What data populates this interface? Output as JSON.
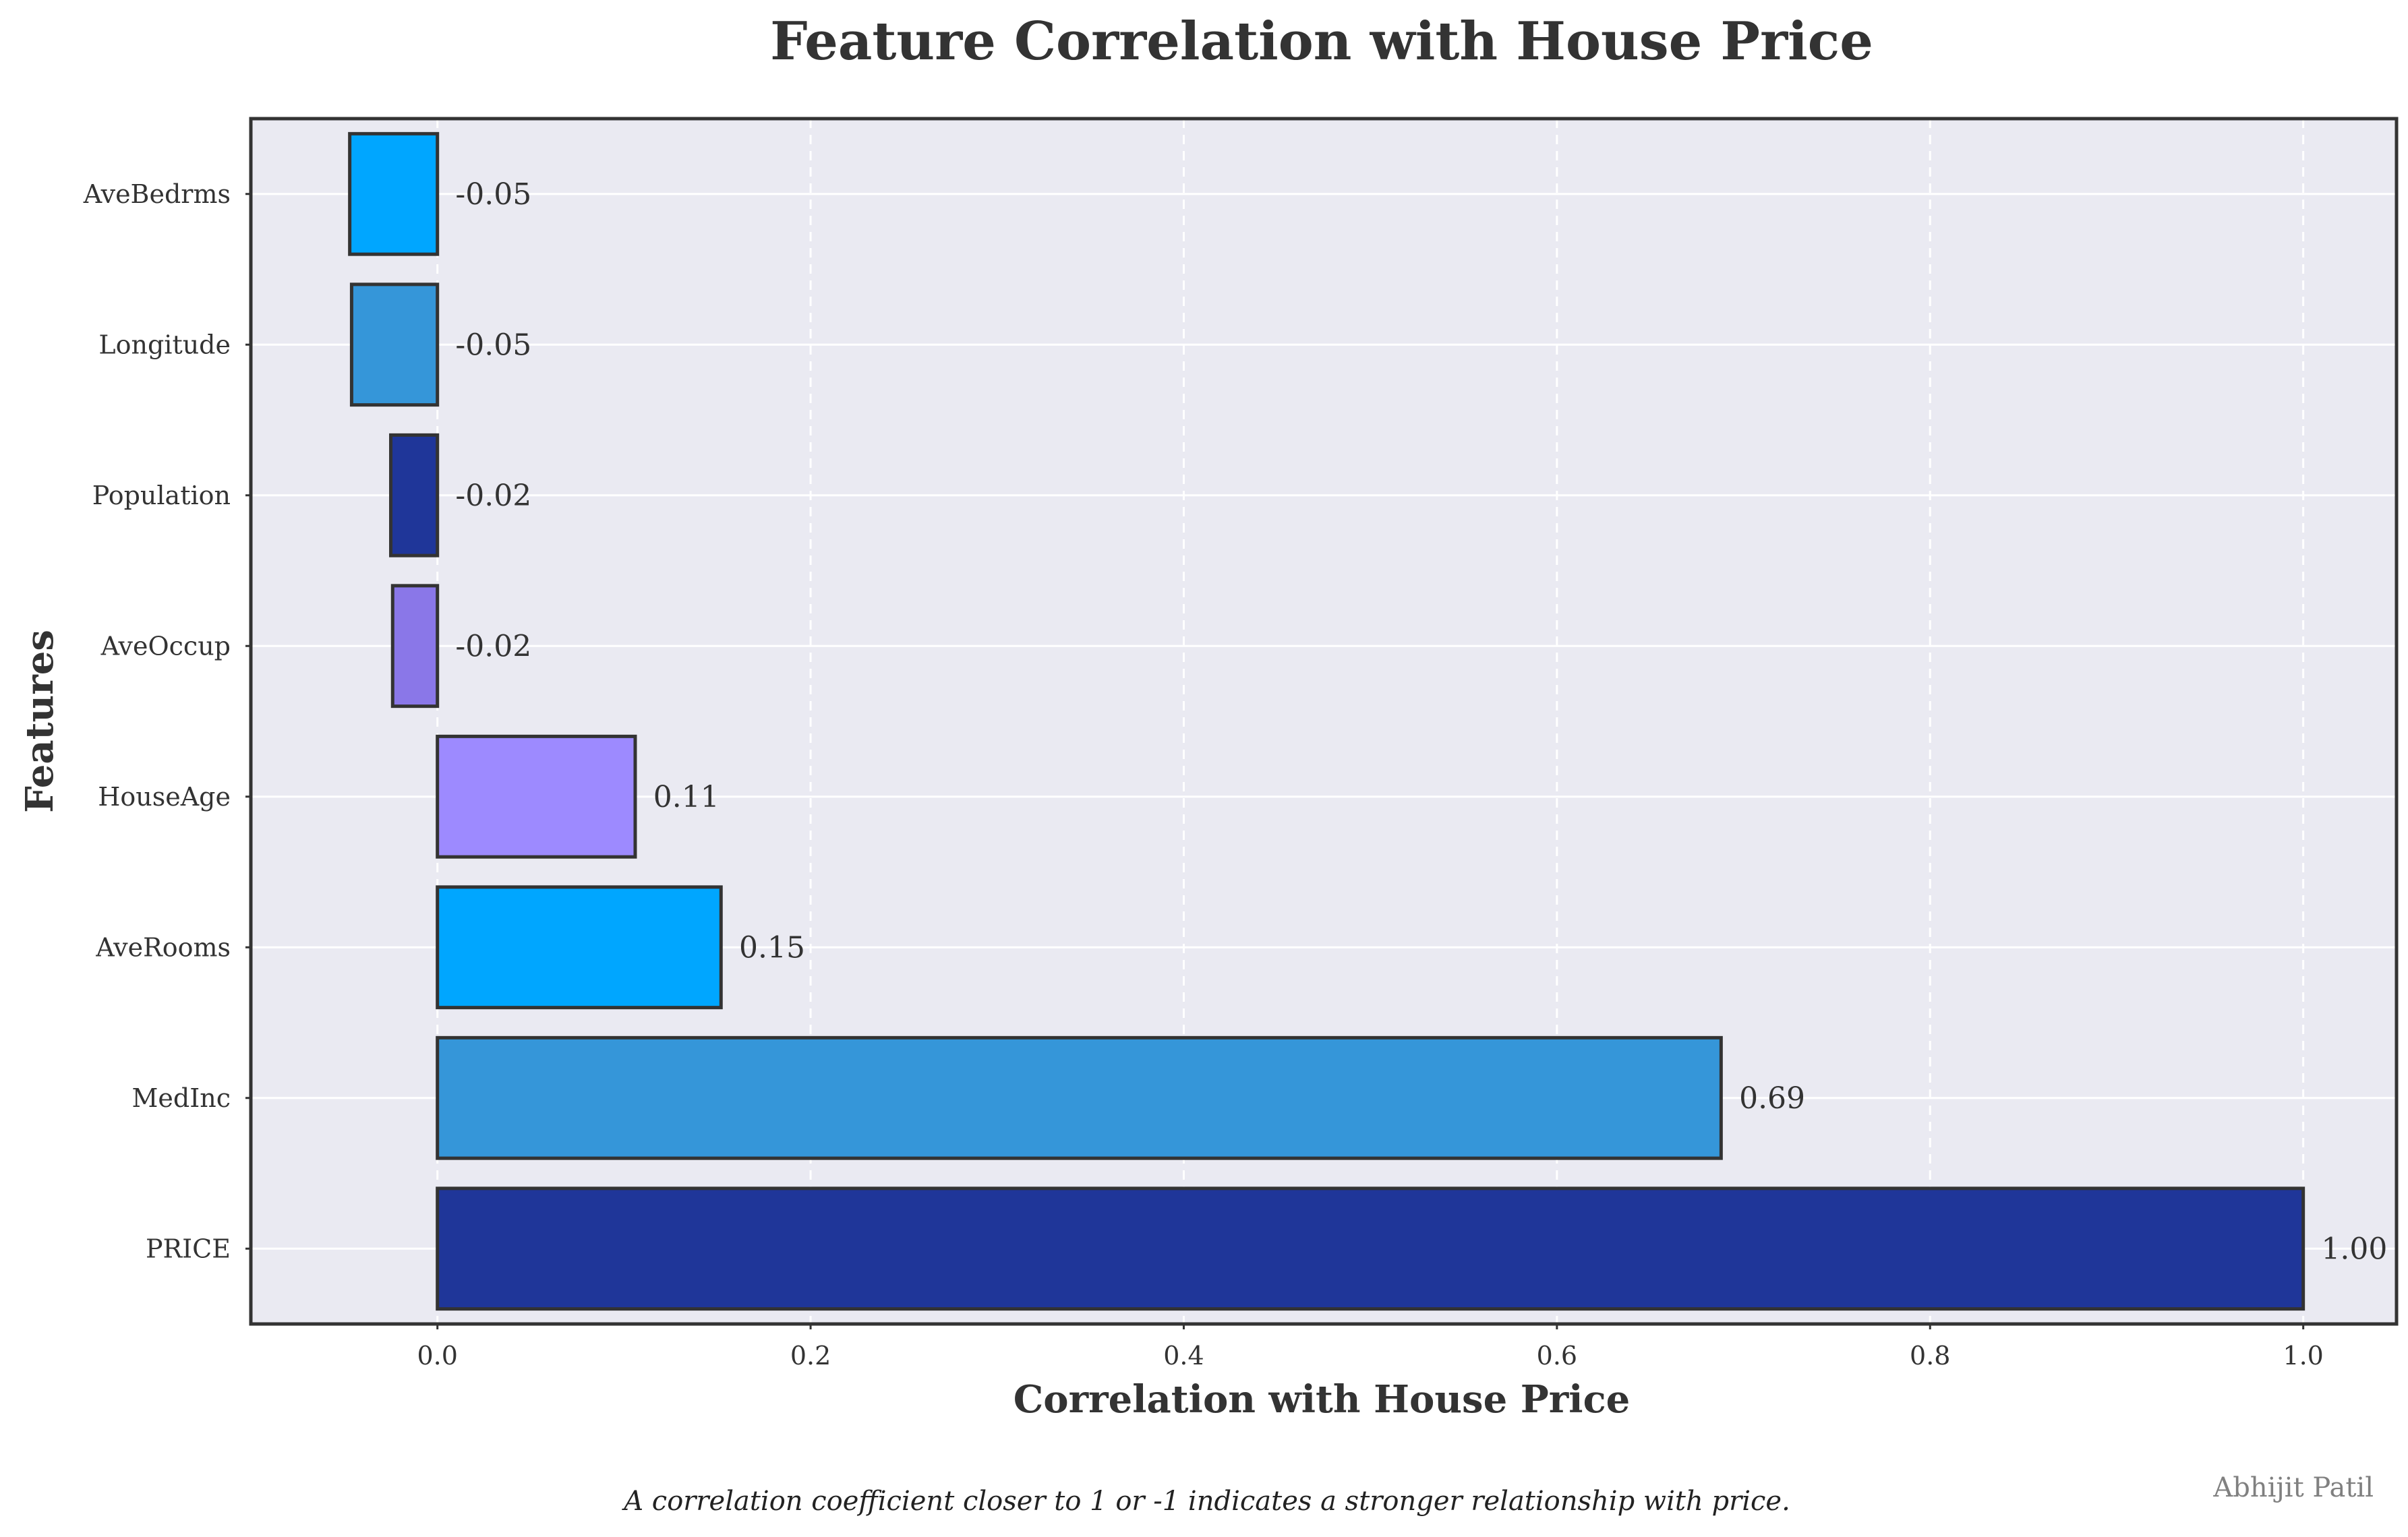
{
  "chart_data": {
    "type": "bar",
    "orientation": "horizontal",
    "title": "Feature Correlation with House Price",
    "xlabel": "Correlation with House Price",
    "ylabel": "Features",
    "categories": [
      "AveBedrms",
      "Longitude",
      "Population",
      "AveOccup",
      "HouseAge",
      "AveRooms",
      "MedInc",
      "PRICE"
    ],
    "values": [
      -0.047,
      -0.046,
      -0.025,
      -0.024,
      0.106,
      0.152,
      0.688,
      1.0
    ],
    "data_labels": [
      "-0.05",
      "-0.05",
      "-0.02",
      "-0.02",
      "0.11",
      "0.15",
      "0.69",
      "1.00"
    ],
    "colors": [
      "#00a6ff",
      "#3596d9",
      "#1f3699",
      "#8a77e8",
      "#9d8aff",
      "#00a6ff",
      "#3596d9",
      "#1f3699"
    ],
    "xlim": [
      -0.1,
      1.05
    ],
    "xticks": [
      0.0,
      0.2,
      0.4,
      0.6,
      0.8,
      1.0
    ],
    "xtick_labels": [
      "0.0",
      "0.2",
      "0.4",
      "0.6",
      "0.8",
      "1.0"
    ],
    "grid": true,
    "legend": "none",
    "background_color": "#eaeaf2",
    "edge_color": "#333333"
  },
  "caption": "A correlation coefficient closer to 1 or -1 indicates a stronger relationship with price.",
  "credit": "Abhijit Patil"
}
